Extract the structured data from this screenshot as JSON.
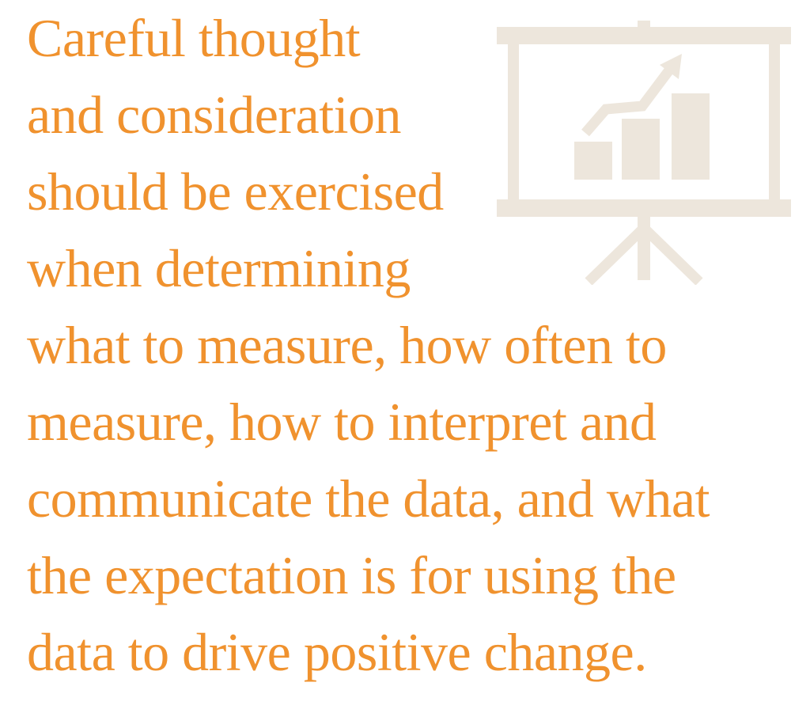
{
  "quote": {
    "lines": [
      "Careful thought",
      "and consideration",
      "should be exercised",
      "when determining",
      "what to measure, how often to",
      "measure, how to interpret and",
      "communicate the data, and what",
      "the expectation is for using the",
      "data to drive positive change."
    ]
  },
  "illustration": {
    "icon": "presentation-chart-icon",
    "color": "#ede6dc"
  },
  "colors": {
    "text": "#f0922e",
    "background": "#ffffff"
  }
}
